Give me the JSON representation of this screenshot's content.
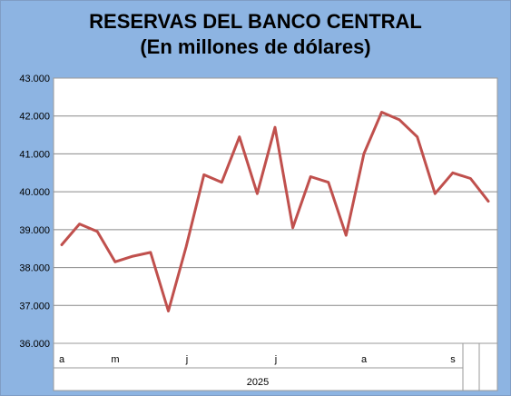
{
  "chart_data": {
    "type": "line",
    "title": [
      "RESERVAS DEL BANCO CENTRAL",
      "(En millones de dólares)"
    ],
    "xlabel": "",
    "ylabel": "",
    "ylim": [
      36000,
      43000
    ],
    "y_ticks": [
      43000,
      42000,
      41000,
      40000,
      39000,
      38000,
      37000,
      36000
    ],
    "y_tick_labels": [
      "43.000",
      "42.000",
      "41.000",
      "40.000",
      "39.000",
      "38.000",
      "37.000",
      "36.000"
    ],
    "x_month_labels": [
      "a",
      "m",
      "j",
      "j",
      "a",
      "s"
    ],
    "x_year_label": "2025",
    "grid": true,
    "legend": "none",
    "series": [
      {
        "color": "#c0504d",
        "values": [
          38600,
          39150,
          38950,
          38150,
          38300,
          38400,
          36850,
          38550,
          40450,
          40250,
          41450,
          39950,
          41700,
          39050,
          40400,
          40250,
          38850,
          41000,
          42100,
          41900,
          41450,
          39950,
          40500,
          40350,
          39750
        ]
      }
    ]
  }
}
